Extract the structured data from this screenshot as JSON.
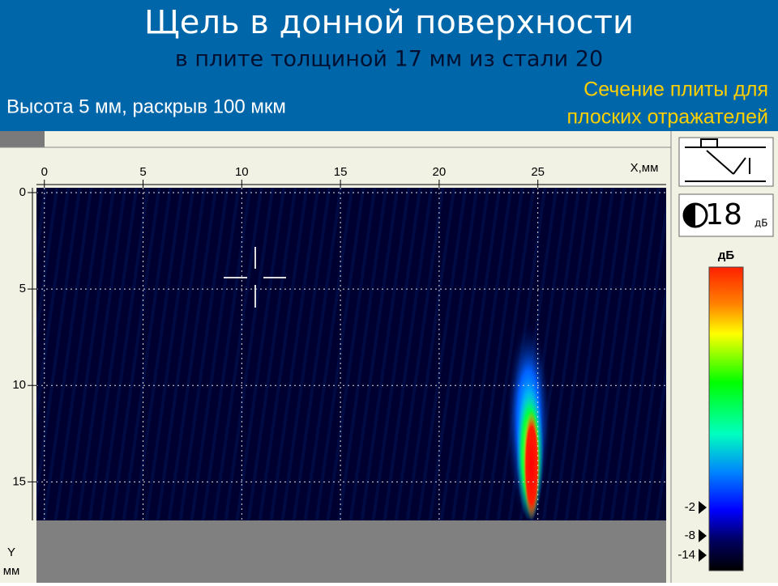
{
  "header": {
    "title": "Щель в донной поверхности",
    "subtitle": "в плите толщиной 17 мм из стали 20",
    "left_note": "Высота 5 мм, раскрыв 100 мкм",
    "right_note": [
      "Сечение плиты для",
      "плоских отражателей"
    ]
  },
  "toolbar": {
    "gain": "18",
    "gain_unit": "дБ"
  },
  "scan": {
    "x_label": "X,мм",
    "y_label": [
      "Y",
      "мм"
    ],
    "xlim": [
      -0.4,
      31.5
    ],
    "xticks": [
      0,
      5,
      10,
      15,
      20,
      25
    ],
    "ylim": [
      -0.25,
      17
    ],
    "yticks": [
      0,
      5,
      10,
      15
    ]
  },
  "colorbar": {
    "title": "дБ",
    "labels": [
      "-2",
      "-8",
      "-14"
    ]
  }
}
